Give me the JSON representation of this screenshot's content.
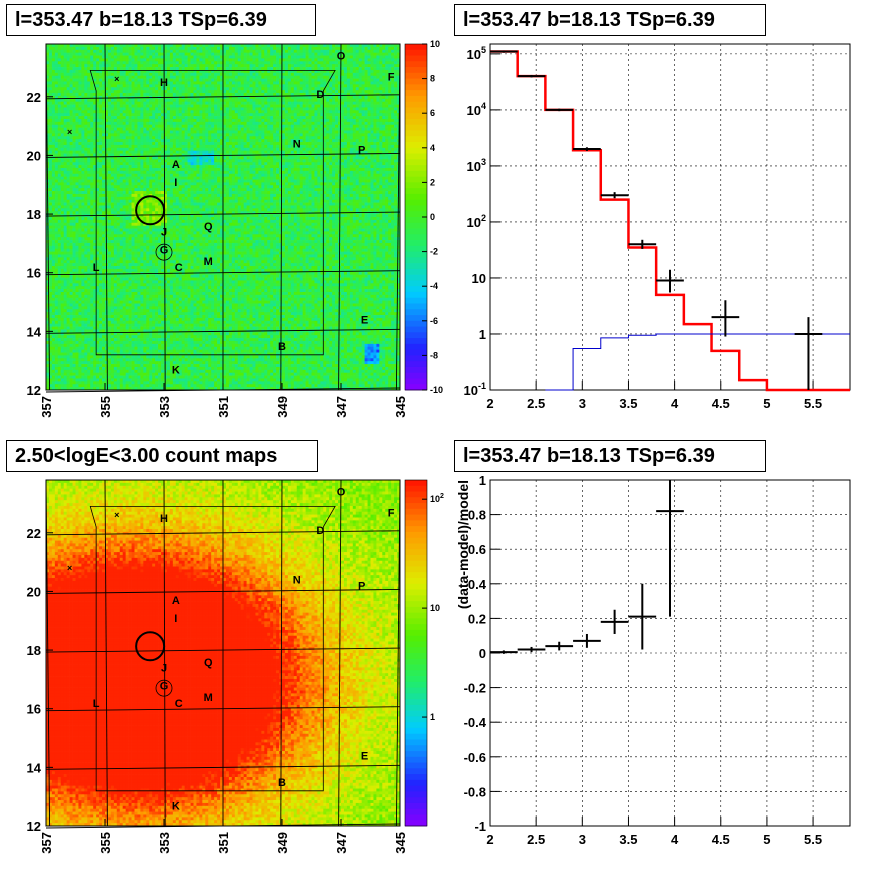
{
  "titles": {
    "p1": "l=353.47 b=18.13 TSp=6.39",
    "p2": "l=353.47 b=18.13 TSp=6.39",
    "p3": "2.50<logE<3.00 count maps",
    "p4": "l=353.47 b=18.13 TSp=6.39"
  },
  "colors": {
    "model": "#ff0000",
    "background": "#0000cc",
    "data": "#000000",
    "map1_base": "#33dd33",
    "map2_base": "#f09030"
  },
  "chart_data": [
    {
      "type": "heatmap",
      "title": "l=353.47 b=18.13 TSp=6.39",
      "xticks": [
        "357",
        "355",
        "353",
        "351",
        "349",
        "347",
        "345"
      ],
      "yticks": [
        "12",
        "14",
        "16",
        "18",
        "20",
        "22"
      ],
      "xlim": [
        357,
        345
      ],
      "ylim": [
        12,
        23.8
      ],
      "colorbar": {
        "ticks": [
          "10",
          "8",
          "6",
          "4",
          "2",
          "0",
          "-2",
          "-4",
          "-6",
          "-8",
          "-10"
        ],
        "range": [
          -10,
          10
        ],
        "scale": "linear"
      },
      "source_labels": [
        "O",
        "F",
        "H",
        "D",
        "N",
        "P",
        "A",
        "I",
        "J",
        "Q",
        "G",
        "L",
        "C",
        "M",
        "E",
        "B",
        "K"
      ],
      "source_circle_center": [
        353.47,
        18.13
      ]
    },
    {
      "type": "line",
      "title": "l=353.47 b=18.13 TSp=6.39",
      "yscale": "log",
      "xlim": [
        2,
        5.9
      ],
      "ylim": [
        0.1,
        150000
      ],
      "xticks": [
        "2",
        "2.5",
        "3",
        "3.5",
        "4",
        "4.5",
        "5",
        "5.5"
      ],
      "yticks": [
        "10^-1",
        "1",
        "10",
        "10^2",
        "10^3",
        "10^4",
        "10^5"
      ],
      "grid": true,
      "series": [
        {
          "role": "model",
          "style": "step",
          "edges": [
            2.0,
            2.3,
            2.6,
            2.9,
            3.2,
            3.5,
            3.8,
            4.1,
            4.4,
            4.7,
            5.0,
            5.9
          ],
          "values": [
            110000,
            40000,
            10000,
            1900,
            250,
            35,
            5,
            1.5,
            0.5,
            0.15,
            0.1
          ]
        },
        {
          "role": "background",
          "style": "step",
          "edges": [
            2.6,
            2.9,
            3.2,
            3.5,
            3.8,
            4.1,
            4.4,
            4.7,
            5.0,
            5.9
          ],
          "values": [
            0.1,
            0.55,
            0.85,
            0.95,
            1.0,
            1.0,
            1.0,
            1.0,
            1.0
          ]
        },
        {
          "role": "data",
          "style": "errorbar",
          "x": [
            2.15,
            2.45,
            2.75,
            3.05,
            3.35,
            3.65,
            3.95,
            4.55,
            5.45
          ],
          "y": [
            110000,
            40000,
            10000,
            2000,
            300,
            40,
            9,
            2,
            1
          ],
          "xerr": [
            0.15,
            0.15,
            0.15,
            0.15,
            0.15,
            0.15,
            0.15,
            0.15,
            0.15
          ],
          "ylo": [
            105000,
            38000,
            9500,
            1850,
            265,
            33,
            5.5,
            0.9,
            0.1
          ],
          "yhi": [
            115000,
            42000,
            10500,
            2150,
            340,
            48,
            14,
            4,
            2
          ]
        }
      ]
    },
    {
      "type": "heatmap",
      "title": "2.50<logE<3.00 count maps",
      "xticks": [
        "357",
        "355",
        "353",
        "351",
        "349",
        "347",
        "345"
      ],
      "yticks": [
        "12",
        "14",
        "16",
        "18",
        "20",
        "22"
      ],
      "xlim": [
        357,
        345
      ],
      "ylim": [
        12,
        23.8
      ],
      "colorbar": {
        "ticks": [
          "10^2",
          "10",
          "1"
        ],
        "range": [
          0.1,
          150
        ],
        "scale": "log"
      },
      "source_labels": [
        "O",
        "F",
        "H",
        "D",
        "N",
        "P",
        "A",
        "I",
        "J",
        "Q",
        "G",
        "L",
        "C",
        "M",
        "E",
        "B",
        "K"
      ],
      "source_circle_center": [
        353.47,
        18.13
      ]
    },
    {
      "type": "scatter",
      "title": "l=353.47 b=18.13 TSp=6.39",
      "ylabel": "(data-model)/model",
      "xlim": [
        2,
        5.9
      ],
      "ylim": [
        -1,
        1
      ],
      "xticks": [
        "2",
        "2.5",
        "3",
        "3.5",
        "4",
        "4.5",
        "5",
        "5.5"
      ],
      "yticks": [
        "1",
        "0.8",
        "0.6",
        "0.4",
        "0.2",
        "0",
        "-0.2",
        "-0.4",
        "-0.6",
        "-0.8",
        "-1"
      ],
      "grid": true,
      "x": [
        2.15,
        2.45,
        2.75,
        3.05,
        3.35,
        3.65,
        3.95
      ],
      "y": [
        0.005,
        0.02,
        0.04,
        0.07,
        0.18,
        0.21,
        0.82
      ],
      "xerr": [
        0.15,
        0.15,
        0.15,
        0.15,
        0.15,
        0.15,
        0.15
      ],
      "yerr": [
        0.01,
        0.015,
        0.025,
        0.04,
        0.07,
        0.19,
        0.61
      ]
    }
  ]
}
